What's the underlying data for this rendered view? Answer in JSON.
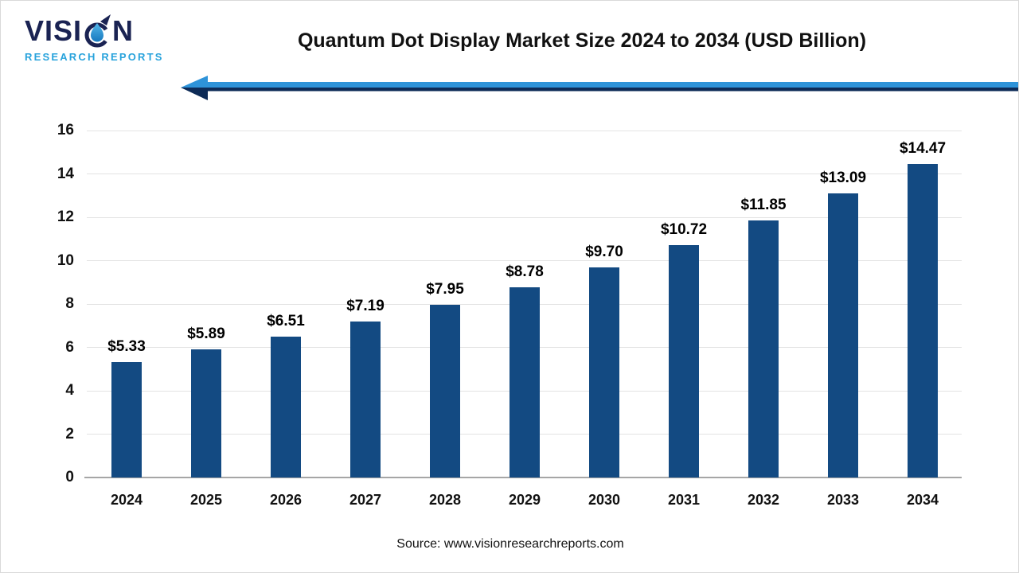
{
  "brand": {
    "name_prefix": "VISI",
    "name_suffix": "N",
    "tagline": "RESEARCH REPORTS"
  },
  "header": {
    "title": "Quantum Dot Display Market Size 2024 to 2034 (USD Billion)"
  },
  "source": "Source: www.visionresearchreports.com",
  "colors": {
    "bar": "#134a82",
    "arrow_light": "#2e93d9",
    "arrow_dark": "#0d2b57",
    "brand_navy": "#1a2353",
    "brand_blue": "#29a3dc",
    "brand_drop_light": "#53b7ea",
    "brand_drop_dark": "#1778be",
    "grid": "#e3e3e3",
    "axis": "#a6a6a6"
  },
  "chart_data": {
    "type": "bar",
    "title": "Quantum Dot Display Market Size 2024 to 2034 (USD Billion)",
    "categories": [
      "2024",
      "2025",
      "2026",
      "2027",
      "2028",
      "2029",
      "2030",
      "2031",
      "2032",
      "2033",
      "2034"
    ],
    "values": [
      5.33,
      5.89,
      6.51,
      7.19,
      7.95,
      8.78,
      9.7,
      10.72,
      11.85,
      13.09,
      14.47
    ],
    "value_labels": [
      "$5.33",
      "$5.89",
      "$6.51",
      "$7.19",
      "$7.95",
      "$8.78",
      "$9.70",
      "$10.72",
      "$11.85",
      "$13.09",
      "$14.47"
    ],
    "xlabel": "",
    "ylabel": "",
    "ylim": [
      0,
      16
    ],
    "yticks": [
      0,
      2,
      4,
      6,
      8,
      10,
      12,
      14,
      16
    ],
    "grid": true,
    "legend": false,
    "currency_unit": "USD Billion"
  }
}
